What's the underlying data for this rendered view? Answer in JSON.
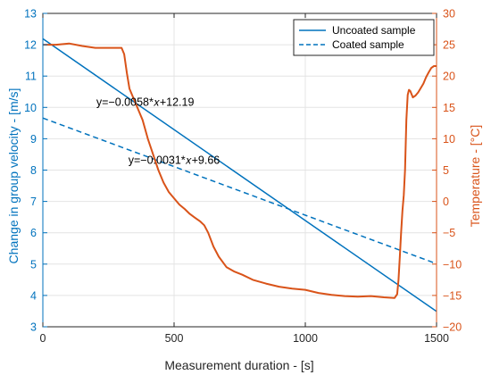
{
  "chart_data": {
    "type": "line",
    "xlabel": "Measurement duration - [s]",
    "ylabel_left": "Change in group velocity - [m/s]",
    "ylabel_right": "Temperature - [°C]",
    "xlim": [
      0,
      1500
    ],
    "ylim_left": [
      3,
      13
    ],
    "ylim_right": [
      -20,
      30
    ],
    "x_ticks": [
      0,
      500,
      1000,
      1500
    ],
    "y_ticks_left": [
      3,
      4,
      5,
      6,
      7,
      8,
      9,
      10,
      11,
      12,
      13
    ],
    "y_ticks_right": [
      -20,
      -15,
      -10,
      -5,
      0,
      5,
      10,
      15,
      20,
      25,
      30
    ],
    "grid": true,
    "legend_position": "top-right",
    "colors": {
      "left_axis": "#0072BD",
      "right_axis": "#D95319",
      "grid": "#e4e4e4",
      "box": "#262626"
    },
    "series": [
      {
        "name": "Uncoated sample",
        "axis": "left",
        "style": "solid",
        "color": "#0072BD",
        "x": [
          0,
          1500
        ],
        "y": [
          12.19,
          3.49
        ]
      },
      {
        "name": "Coated sample",
        "axis": "left",
        "style": "dashed",
        "color": "#0072BD",
        "x": [
          0,
          1500
        ],
        "y": [
          9.66,
          5.01
        ]
      },
      {
        "axis": "right",
        "style": "solid",
        "color": "#D95319",
        "x": [
          0,
          50,
          100,
          150,
          200,
          250,
          300,
          310,
          320,
          330,
          345,
          360,
          380,
          400,
          420,
          440,
          460,
          480,
          500,
          520,
          540,
          560,
          580,
          600,
          615,
          630,
          650,
          670,
          700,
          730,
          760,
          800,
          850,
          900,
          950,
          1000,
          1050,
          1100,
          1150,
          1200,
          1250,
          1300,
          1340,
          1350,
          1355,
          1360,
          1365,
          1370,
          1375,
          1380,
          1385,
          1390,
          1395,
          1400,
          1410,
          1420,
          1430,
          1440,
          1450,
          1460,
          1470,
          1480,
          1490,
          1500
        ],
        "y": [
          25.0,
          25.0,
          25.2,
          24.8,
          24.5,
          24.5,
          24.5,
          23.5,
          20.5,
          18.0,
          16.5,
          15.0,
          13.0,
          10.0,
          7.5,
          5.0,
          3.0,
          1.5,
          0.5,
          -0.5,
          -1.2,
          -2.0,
          -2.6,
          -3.2,
          -3.8,
          -5.0,
          -7.2,
          -8.8,
          -10.5,
          -11.2,
          -11.7,
          -12.5,
          -13.1,
          -13.6,
          -13.9,
          -14.1,
          -14.6,
          -14.9,
          -15.1,
          -15.2,
          -15.1,
          -15.3,
          -15.4,
          -14.8,
          -12.5,
          -9.0,
          -5.0,
          -1.5,
          1.0,
          5.0,
          13.0,
          17.0,
          17.8,
          17.6,
          16.6,
          16.9,
          17.4,
          18.1,
          18.8,
          19.8,
          20.6,
          21.3,
          21.6,
          21.6
        ]
      }
    ],
    "annotations": [
      {
        "text": "y=−0.0058*𝑥+12.19",
        "x": 390,
        "y": 10.05
      },
      {
        "text": "y=−0.0031*𝑥+9.66",
        "x": 500,
        "y": 8.2
      }
    ]
  }
}
